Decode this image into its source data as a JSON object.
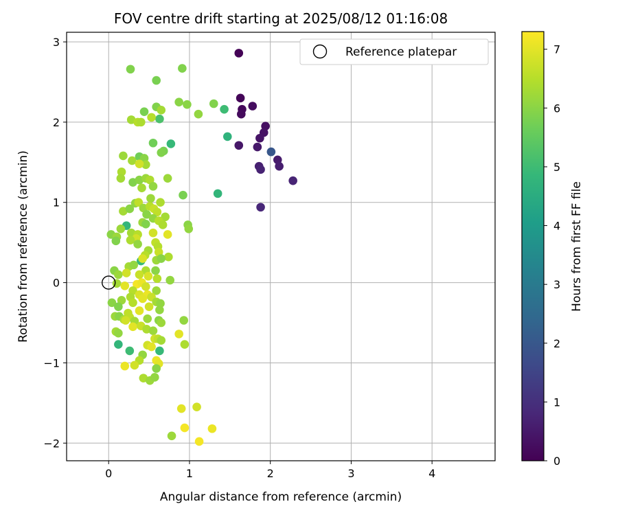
{
  "chart_data": {
    "type": "scatter",
    "title": "FOV centre drift starting at 2025/08/12 01:16:08",
    "xlabel": "Angular distance from reference (arcmin)",
    "ylabel": "Rotation from reference (arcmin)",
    "xlim": [
      -0.52,
      4.78
    ],
    "ylim": [
      -2.22,
      3.12
    ],
    "x_ticks": [
      0,
      1,
      2,
      3,
      4
    ],
    "x_tick_labels": [
      "0",
      "1",
      "2",
      "3",
      "4"
    ],
    "y_ticks": [
      -2,
      -1,
      0,
      1,
      2,
      3
    ],
    "y_tick_labels": [
      "−2",
      "−1",
      "0",
      "1",
      "2",
      "3"
    ],
    "grid": true,
    "legend": {
      "position": "top-right",
      "entries": [
        {
          "label": "Reference platepar",
          "marker": "open-circle"
        }
      ]
    },
    "reference_point": {
      "x": 0,
      "y": 0
    },
    "colorbar": {
      "label": "Hours from first FF file",
      "colormap": "viridis",
      "range": [
        0,
        7.3
      ],
      "ticks": [
        0,
        1,
        2,
        3,
        4,
        5,
        6,
        7
      ],
      "tick_labels": [
        "0",
        "1",
        "2",
        "3",
        "4",
        "5",
        "6",
        "7"
      ]
    },
    "colormap_stops": [
      "#440154",
      "#482878",
      "#3e4989",
      "#31688e",
      "#26828e",
      "#1f9e89",
      "#35b779",
      "#6ece58",
      "#b5de2b",
      "#fde725"
    ],
    "points": [
      {
        "x": 1.61,
        "y": 2.86,
        "c": 0.05
      },
      {
        "x": 1.63,
        "y": 2.3,
        "c": 0.1
      },
      {
        "x": 1.65,
        "y": 2.16,
        "c": 0.15
      },
      {
        "x": 1.64,
        "y": 2.1,
        "c": 0.2
      },
      {
        "x": 1.78,
        "y": 2.2,
        "c": 0.25
      },
      {
        "x": 1.94,
        "y": 1.95,
        "c": 0.3
      },
      {
        "x": 1.92,
        "y": 1.87,
        "c": 0.35
      },
      {
        "x": 1.87,
        "y": 1.8,
        "c": 0.4
      },
      {
        "x": 1.61,
        "y": 1.71,
        "c": 0.45
      },
      {
        "x": 1.84,
        "y": 1.69,
        "c": 0.5
      },
      {
        "x": 2.09,
        "y": 1.53,
        "c": 0.55
      },
      {
        "x": 2.11,
        "y": 1.45,
        "c": 0.6
      },
      {
        "x": 1.86,
        "y": 1.45,
        "c": 0.65
      },
      {
        "x": 1.88,
        "y": 1.41,
        "c": 0.7
      },
      {
        "x": 2.28,
        "y": 1.27,
        "c": 0.75
      },
      {
        "x": 1.88,
        "y": 0.94,
        "c": 0.8
      },
      {
        "x": 2.01,
        "y": 1.63,
        "c": 2.0
      },
      {
        "x": 1.43,
        "y": 2.16,
        "c": 5.0
      },
      {
        "x": 1.47,
        "y": 1.82,
        "c": 4.7
      },
      {
        "x": 1.35,
        "y": 1.11,
        "c": 4.8
      },
      {
        "x": 0.77,
        "y": 1.73,
        "c": 4.9
      },
      {
        "x": 0.22,
        "y": 0.71,
        "c": 4.8
      },
      {
        "x": 0.4,
        "y": 0.27,
        "c": 4.9
      },
      {
        "x": 0.12,
        "y": -0.77,
        "c": 4.8
      },
      {
        "x": 0.26,
        "y": -0.85,
        "c": 5.0
      },
      {
        "x": 0.63,
        "y": -0.85,
        "c": 4.9
      },
      {
        "x": 0.63,
        "y": 2.04,
        "c": 5.2
      },
      {
        "x": 0.27,
        "y": 2.66,
        "c": 5.9
      },
      {
        "x": 0.91,
        "y": 2.67,
        "c": 5.9
      },
      {
        "x": 0.59,
        "y": 2.52,
        "c": 5.8
      },
      {
        "x": 0.87,
        "y": 2.25,
        "c": 6.0
      },
      {
        "x": 0.97,
        "y": 2.22,
        "c": 6.0
      },
      {
        "x": 1.3,
        "y": 2.23,
        "c": 5.9
      },
      {
        "x": 1.11,
        "y": 2.1,
        "c": 6.1
      },
      {
        "x": 0.44,
        "y": 2.13,
        "c": 5.8
      },
      {
        "x": 0.59,
        "y": 2.19,
        "c": 5.9
      },
      {
        "x": 0.65,
        "y": 2.15,
        "c": 6.3
      },
      {
        "x": 0.28,
        "y": 2.03,
        "c": 6.3
      },
      {
        "x": 0.36,
        "y": 2.0,
        "c": 6.5
      },
      {
        "x": 0.4,
        "y": 2.0,
        "c": 6.4
      },
      {
        "x": 0.53,
        "y": 2.06,
        "c": 6.5
      },
      {
        "x": 0.55,
        "y": 1.74,
        "c": 5.7
      },
      {
        "x": 0.68,
        "y": 1.64,
        "c": 5.8
      },
      {
        "x": 0.65,
        "y": 1.62,
        "c": 5.9
      },
      {
        "x": 0.18,
        "y": 1.58,
        "c": 6.2
      },
      {
        "x": 0.29,
        "y": 1.52,
        "c": 6.3
      },
      {
        "x": 0.38,
        "y": 1.57,
        "c": 5.7
      },
      {
        "x": 0.44,
        "y": 1.55,
        "c": 6.0
      },
      {
        "x": 0.46,
        "y": 1.47,
        "c": 6.3
      },
      {
        "x": 0.38,
        "y": 1.48,
        "c": 6.8
      },
      {
        "x": 0.16,
        "y": 1.38,
        "c": 6.4
      },
      {
        "x": 0.73,
        "y": 1.3,
        "c": 6.2
      },
      {
        "x": 0.15,
        "y": 1.3,
        "c": 6.3
      },
      {
        "x": 0.3,
        "y": 1.25,
        "c": 5.9
      },
      {
        "x": 0.38,
        "y": 1.28,
        "c": 6.0
      },
      {
        "x": 0.46,
        "y": 1.3,
        "c": 6.2
      },
      {
        "x": 0.51,
        "y": 1.28,
        "c": 6.4
      },
      {
        "x": 0.55,
        "y": 1.2,
        "c": 6.1
      },
      {
        "x": 0.41,
        "y": 1.18,
        "c": 6.3
      },
      {
        "x": 0.92,
        "y": 1.09,
        "c": 5.8
      },
      {
        "x": 0.52,
        "y": 1.05,
        "c": 6.2
      },
      {
        "x": 0.33,
        "y": 0.99,
        "c": 6.1
      },
      {
        "x": 0.37,
        "y": 1.0,
        "c": 6.6
      },
      {
        "x": 0.64,
        "y": 1.0,
        "c": 6.4
      },
      {
        "x": 0.18,
        "y": 0.89,
        "c": 6.3
      },
      {
        "x": 0.26,
        "y": 0.92,
        "c": 6.0
      },
      {
        "x": 0.43,
        "y": 0.93,
        "c": 6.2
      },
      {
        "x": 0.51,
        "y": 0.95,
        "c": 6.5
      },
      {
        "x": 0.56,
        "y": 0.92,
        "c": 6.7
      },
      {
        "x": 0.6,
        "y": 0.88,
        "c": 6.6
      },
      {
        "x": 0.47,
        "y": 0.85,
        "c": 6.0
      },
      {
        "x": 0.7,
        "y": 0.82,
        "c": 6.3
      },
      {
        "x": 0.55,
        "y": 0.8,
        "c": 6.1
      },
      {
        "x": 0.62,
        "y": 0.77,
        "c": 6.5
      },
      {
        "x": 0.42,
        "y": 0.75,
        "c": 6.2
      },
      {
        "x": 0.46,
        "y": 0.73,
        "c": 5.9
      },
      {
        "x": 0.67,
        "y": 0.72,
        "c": 6.4
      },
      {
        "x": 0.98,
        "y": 0.72,
        "c": 6.0
      },
      {
        "x": 0.99,
        "y": 0.67,
        "c": 6.1
      },
      {
        "x": 0.15,
        "y": 0.67,
        "c": 6.2
      },
      {
        "x": 0.28,
        "y": 0.62,
        "c": 6.3
      },
      {
        "x": 0.36,
        "y": 0.6,
        "c": 6.5
      },
      {
        "x": 0.55,
        "y": 0.62,
        "c": 6.8
      },
      {
        "x": 0.73,
        "y": 0.6,
        "c": 7.0
      },
      {
        "x": 0.03,
        "y": 0.6,
        "c": 6.0
      },
      {
        "x": 0.1,
        "y": 0.57,
        "c": 6.2
      },
      {
        "x": 0.09,
        "y": 0.52,
        "c": 5.9
      },
      {
        "x": 0.34,
        "y": 0.55,
        "c": 6.8
      },
      {
        "x": 0.27,
        "y": 0.53,
        "c": 6.4
      },
      {
        "x": 0.58,
        "y": 0.5,
        "c": 6.6
      },
      {
        "x": 0.61,
        "y": 0.45,
        "c": 6.5
      },
      {
        "x": 0.36,
        "y": 0.48,
        "c": 6.1
      },
      {
        "x": 0.49,
        "y": 0.4,
        "c": 6.3
      },
      {
        "x": 0.62,
        "y": 0.38,
        "c": 6.7
      },
      {
        "x": 0.45,
        "y": 0.34,
        "c": 6.5
      },
      {
        "x": 0.42,
        "y": 0.3,
        "c": 6.9
      },
      {
        "x": 0.59,
        "y": 0.28,
        "c": 6.2
      },
      {
        "x": 0.74,
        "y": 0.32,
        "c": 6.4
      },
      {
        "x": 0.65,
        "y": 0.3,
        "c": 6.0
      },
      {
        "x": 0.25,
        "y": 0.2,
        "c": 6.3
      },
      {
        "x": 0.31,
        "y": 0.22,
        "c": 6.1
      },
      {
        "x": 0.58,
        "y": 0.15,
        "c": 6.0
      },
      {
        "x": 0.46,
        "y": 0.15,
        "c": 6.4
      },
      {
        "x": 0.07,
        "y": 0.15,
        "c": 6.0
      },
      {
        "x": 0.12,
        "y": 0.1,
        "c": 6.2
      },
      {
        "x": 0.22,
        "y": 0.12,
        "c": 6.8
      },
      {
        "x": 0.38,
        "y": 0.1,
        "c": 6.7
      },
      {
        "x": 0.49,
        "y": 0.08,
        "c": 6.9
      },
      {
        "x": 0.6,
        "y": 0.05,
        "c": 6.5
      },
      {
        "x": 0.76,
        "y": 0.03,
        "c": 6.1
      },
      {
        "x": 0.1,
        "y": -0.01,
        "c": 6.3
      },
      {
        "x": 0.2,
        "y": -0.04,
        "c": 7.0
      },
      {
        "x": 0.35,
        "y": -0.02,
        "c": 7.2
      },
      {
        "x": 0.41,
        "y": 0.0,
        "c": 7.1
      },
      {
        "x": 0.46,
        "y": -0.05,
        "c": 6.8
      },
      {
        "x": 0.3,
        "y": -0.1,
        "c": 6.5
      },
      {
        "x": 0.59,
        "y": -0.1,
        "c": 6.2
      },
      {
        "x": 0.38,
        "y": -0.15,
        "c": 6.9
      },
      {
        "x": 0.48,
        "y": -0.15,
        "c": 7.1
      },
      {
        "x": 0.53,
        "y": -0.18,
        "c": 6.7
      },
      {
        "x": 0.27,
        "y": -0.18,
        "c": 6.4
      },
      {
        "x": 0.42,
        "y": -0.2,
        "c": 7.0
      },
      {
        "x": 0.04,
        "y": -0.25,
        "c": 6.0
      },
      {
        "x": 0.16,
        "y": -0.22,
        "c": 6.2
      },
      {
        "x": 0.3,
        "y": -0.25,
        "c": 6.5
      },
      {
        "x": 0.59,
        "y": -0.24,
        "c": 6.3
      },
      {
        "x": 0.64,
        "y": -0.26,
        "c": 6.1
      },
      {
        "x": 0.12,
        "y": -0.3,
        "c": 5.9
      },
      {
        "x": 0.38,
        "y": -0.35,
        "c": 7.0
      },
      {
        "x": 0.24,
        "y": -0.38,
        "c": 6.6
      },
      {
        "x": 0.5,
        "y": -0.3,
        "c": 6.8
      },
      {
        "x": 0.63,
        "y": -0.34,
        "c": 6.1
      },
      {
        "x": 0.08,
        "y": -0.42,
        "c": 6.2
      },
      {
        "x": 0.13,
        "y": -0.42,
        "c": 6.0
      },
      {
        "x": 0.19,
        "y": -0.46,
        "c": 6.4
      },
      {
        "x": 0.26,
        "y": -0.43,
        "c": 6.6
      },
      {
        "x": 0.32,
        "y": -0.48,
        "c": 6.3
      },
      {
        "x": 0.48,
        "y": -0.45,
        "c": 6.2
      },
      {
        "x": 0.62,
        "y": -0.47,
        "c": 6.0
      },
      {
        "x": 0.65,
        "y": -0.5,
        "c": 6.2
      },
      {
        "x": 0.93,
        "y": -0.47,
        "c": 6.1
      },
      {
        "x": 0.21,
        "y": -0.47,
        "c": 6.8
      },
      {
        "x": 0.3,
        "y": -0.55,
        "c": 7.0
      },
      {
        "x": 0.4,
        "y": -0.54,
        "c": 6.7
      },
      {
        "x": 0.47,
        "y": -0.58,
        "c": 6.4
      },
      {
        "x": 0.55,
        "y": -0.6,
        "c": 6.2
      },
      {
        "x": 0.87,
        "y": -0.64,
        "c": 7.0
      },
      {
        "x": 0.09,
        "y": -0.61,
        "c": 6.3
      },
      {
        "x": 0.12,
        "y": -0.63,
        "c": 6.1
      },
      {
        "x": 0.57,
        "y": -0.7,
        "c": 6.8
      },
      {
        "x": 0.61,
        "y": -0.7,
        "c": 6.6
      },
      {
        "x": 0.65,
        "y": -0.72,
        "c": 6.3
      },
      {
        "x": 0.94,
        "y": -0.77,
        "c": 6.4
      },
      {
        "x": 0.48,
        "y": -0.78,
        "c": 6.8
      },
      {
        "x": 0.53,
        "y": -0.8,
        "c": 7.0
      },
      {
        "x": 0.42,
        "y": -0.9,
        "c": 6.1
      },
      {
        "x": 0.38,
        "y": -0.97,
        "c": 6.5
      },
      {
        "x": 0.59,
        "y": -0.97,
        "c": 7.1
      },
      {
        "x": 0.62,
        "y": -1.01,
        "c": 7.0
      },
      {
        "x": 0.2,
        "y": -1.04,
        "c": 7.1
      },
      {
        "x": 0.32,
        "y": -1.03,
        "c": 6.8
      },
      {
        "x": 0.59,
        "y": -1.07,
        "c": 6.0
      },
      {
        "x": 0.43,
        "y": -1.19,
        "c": 6.4
      },
      {
        "x": 0.51,
        "y": -1.22,
        "c": 6.2
      },
      {
        "x": 0.57,
        "y": -1.18,
        "c": 6.1
      },
      {
        "x": 0.9,
        "y": -1.57,
        "c": 7.0
      },
      {
        "x": 1.09,
        "y": -1.55,
        "c": 6.8
      },
      {
        "x": 0.94,
        "y": -1.81,
        "c": 7.2
      },
      {
        "x": 1.28,
        "y": -1.82,
        "c": 7.1
      },
      {
        "x": 0.78,
        "y": -1.91,
        "c": 6.2
      },
      {
        "x": 1.12,
        "y": -1.98,
        "c": 7.2
      }
    ]
  }
}
